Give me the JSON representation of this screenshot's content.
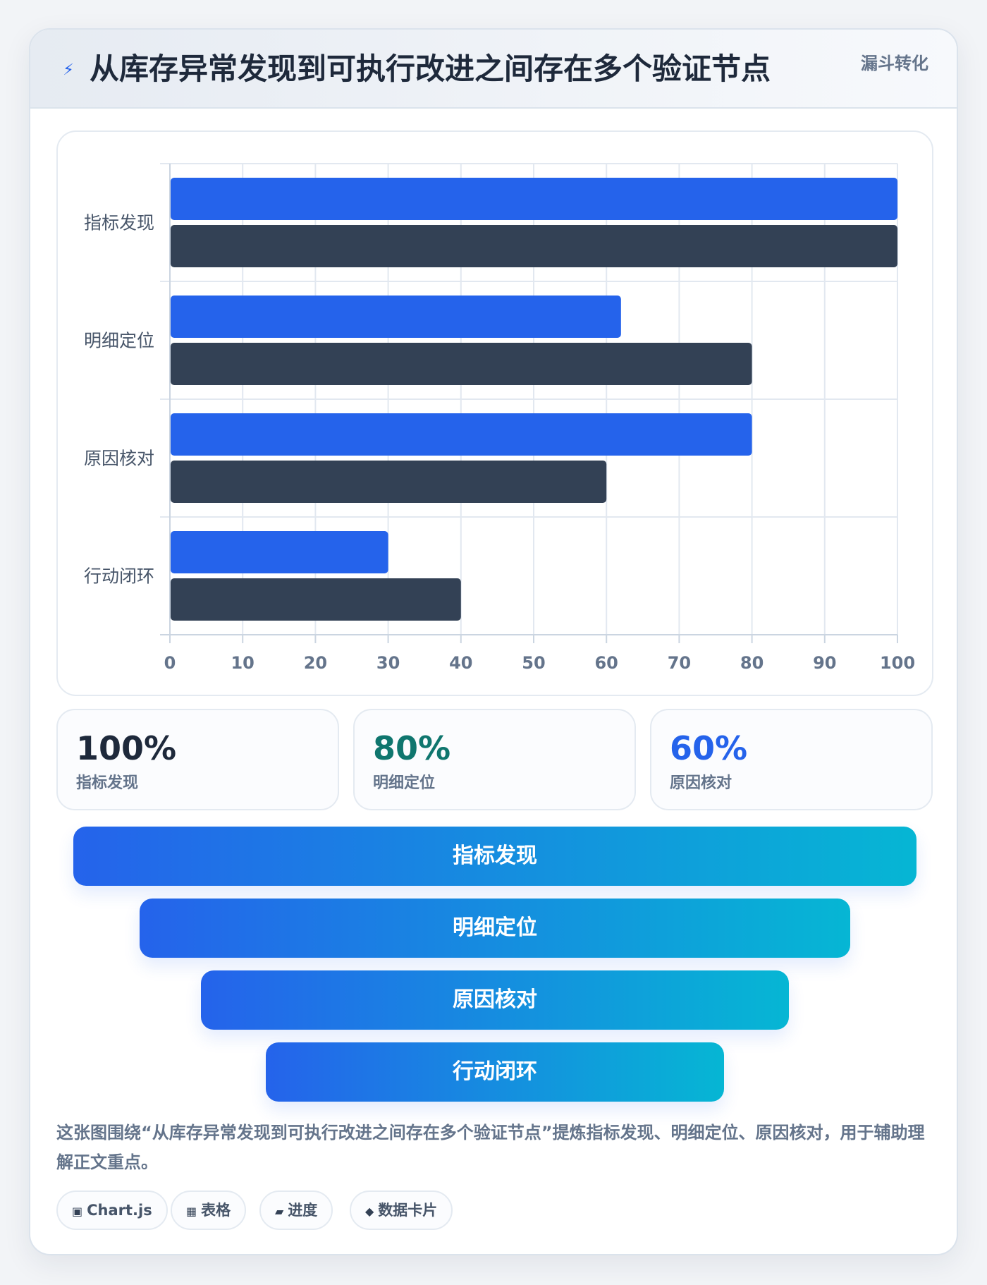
{
  "header": {
    "icon": "bolt-icon",
    "title": "从库存异常发现到可执行改进之间存在多个验证节点",
    "tag": "漏斗转化"
  },
  "chart_data": {
    "type": "bar",
    "orientation": "horizontal",
    "categories": [
      "指标发现",
      "明细定位",
      "原因核对",
      "行动闭环"
    ],
    "series": [
      {
        "values": [
          100,
          62,
          80,
          30
        ],
        "color": "#2563eb"
      },
      {
        "values": [
          100,
          80,
          60,
          40
        ],
        "color": "#334155"
      }
    ],
    "xlim": [
      0,
      100
    ],
    "xticks": [
      0,
      10,
      20,
      30,
      40,
      50,
      60,
      70,
      80,
      90,
      100
    ],
    "grid": true
  },
  "stats": [
    {
      "value": "100%",
      "label": "指标发现",
      "color": "#1e293b"
    },
    {
      "value": "80%",
      "label": "明细定位",
      "color": "#0f766e"
    },
    {
      "value": "60%",
      "label": "原因核对",
      "color": "#2563eb"
    }
  ],
  "funnel": [
    {
      "label": "指标发现",
      "share": 1.0
    },
    {
      "label": "明细定位",
      "share": 0.843
    },
    {
      "label": "原因核对",
      "share": 0.697
    },
    {
      "label": "行动闭环",
      "share": 0.543
    }
  ],
  "description": "这张图围绕“从库存异常发现到可执行改进之间存在多个验证节点”提炼指标发现、明细定位、原因核对，用于辅助理解正文重点。",
  "tags": [
    {
      "icon": "▣",
      "label": "Chart.js"
    },
    {
      "icon": "▦",
      "label": "表格"
    },
    {
      "icon": "▰",
      "label": "进度"
    },
    {
      "icon": "◆",
      "label": "数据卡片"
    }
  ]
}
